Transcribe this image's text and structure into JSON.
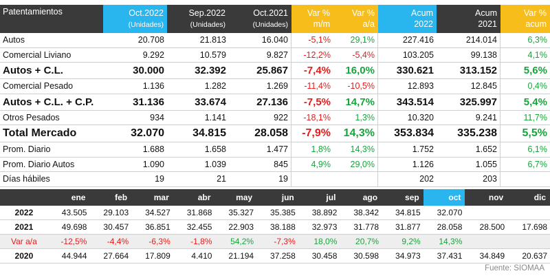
{
  "header": {
    "title": "Patentamientos",
    "col1": "Oct.2022",
    "col1_sub": "(Unidades)",
    "col2": "Sep.2022",
    "col2_sub": "(Unidades)",
    "col3": "Oct.2021",
    "col3_sub": "(Unidades)",
    "col4": "Var %",
    "col4_sub": "m/m",
    "col5": "Var %",
    "col5_sub": "a/a",
    "col6": "Acum",
    "col6_sub": "2022",
    "col7": "Acum",
    "col7_sub": "2021",
    "col8": "Var %",
    "col8_sub": "acum"
  },
  "rows": [
    {
      "label": "Autos",
      "c1": "20.708",
      "c2": "21.813",
      "c3": "16.040",
      "c4": "-5,1%",
      "c5": "29,1%",
      "c6": "227.416",
      "c7": "214.014",
      "c8": "6,3%"
    },
    {
      "label": "Comercial Liviano",
      "c1": "9.292",
      "c2": "10.579",
      "c3": "9.827",
      "c4": "-12,2%",
      "c5": "-5,4%",
      "c6": "103.205",
      "c7": "99.138",
      "c8": "4,1%"
    },
    {
      "label": "Autos + C.L.",
      "c1": "30.000",
      "c2": "32.392",
      "c3": "25.867",
      "c4": "-7,4%",
      "c5": "16,0%",
      "c6": "330.621",
      "c7": "313.152",
      "c8": "5,6%"
    },
    {
      "label": "Comercial Pesado",
      "c1": "1.136",
      "c2": "1.282",
      "c3": "1.269",
      "c4": "-11,4%",
      "c5": "-10,5%",
      "c6": "12.893",
      "c7": "12.845",
      "c8": "0,4%"
    },
    {
      "label": "Autos + C.L. + C.P.",
      "c1": "31.136",
      "c2": "33.674",
      "c3": "27.136",
      "c4": "-7,5%",
      "c5": "14,7%",
      "c6": "343.514",
      "c7": "325.997",
      "c8": "5,4%"
    },
    {
      "label": "Otros Pesados",
      "c1": "934",
      "c2": "1.141",
      "c3": "922",
      "c4": "-18,1%",
      "c5": "1,3%",
      "c6": "10.320",
      "c7": "9.241",
      "c8": "11,7%"
    },
    {
      "label": "Total Mercado",
      "c1": "32.070",
      "c2": "34.815",
      "c3": "28.058",
      "c4": "-7,9%",
      "c5": "14,3%",
      "c6": "353.834",
      "c7": "335.238",
      "c8": "5,5%"
    },
    {
      "label": "Prom. Diario",
      "c1": "1.688",
      "c2": "1.658",
      "c3": "1.477",
      "c4": "1,8%",
      "c5": "14,3%",
      "c6": "1.752",
      "c7": "1.652",
      "c8": "6,1%"
    },
    {
      "label": "Prom. Diario Autos",
      "c1": "1.090",
      "c2": "1.039",
      "c3": "845",
      "c4": "4,9%",
      "c5": "29,0%",
      "c6": "1.126",
      "c7": "1.055",
      "c8": "6,7%"
    },
    {
      "label": "Días hábiles",
      "c1": "19",
      "c2": "21",
      "c3": "19",
      "c4": "",
      "c5": "",
      "c6": "202",
      "c7": "203",
      "c8": ""
    }
  ],
  "monthly": {
    "months": [
      "ene",
      "feb",
      "mar",
      "abr",
      "may",
      "jun",
      "jul",
      "ago",
      "sep",
      "oct",
      "nov",
      "dic"
    ],
    "rows": [
      {
        "label": "2022",
        "values": [
          "43.505",
          "29.103",
          "34.527",
          "31.868",
          "35.327",
          "35.385",
          "38.892",
          "38.342",
          "34.815",
          "32.070",
          "",
          ""
        ]
      },
      {
        "label": "2021",
        "values": [
          "49.698",
          "30.457",
          "36.851",
          "32.455",
          "22.903",
          "38.188",
          "32.973",
          "31.778",
          "31.877",
          "28.058",
          "28.500",
          "17.698"
        ]
      },
      {
        "label": "Var a/a",
        "values": [
          "-12,5%",
          "-4,4%",
          "-6,3%",
          "-1,8%",
          "54,2%",
          "-7,3%",
          "18,0%",
          "20,7%",
          "9,2%",
          "14,3%",
          "",
          ""
        ]
      },
      {
        "label": "2020",
        "values": [
          "44.944",
          "27.664",
          "17.809",
          "4.410",
          "21.194",
          "37.258",
          "30.458",
          "30.598",
          "34.973",
          "37.431",
          "34.849",
          "20.637"
        ]
      }
    ]
  },
  "source": "Fuente: SIOMAA",
  "colors": {
    "header_bg": "#3a3a3a",
    "highlight_blue": "#29b5ee",
    "highlight_yellow": "#f7be1b",
    "negative": "#e81a1a",
    "positive": "#16a53a"
  }
}
